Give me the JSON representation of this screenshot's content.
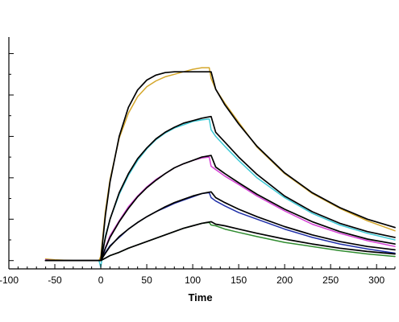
{
  "chart_data": {
    "type": "line",
    "title": "",
    "xlabel": "Time",
    "ylabel": "",
    "xlim": [
      -100,
      320
    ],
    "ylim": [
      -0.1,
      2.7
    ],
    "x_ticks": [
      -100,
      -50,
      0,
      50,
      100,
      150,
      200,
      250,
      300
    ],
    "x_tick_labels": [
      "-100",
      "-50",
      "0",
      "50",
      "100",
      "150",
      "200",
      "250",
      "300"
    ],
    "y_major_ticks": [
      0,
      0.5,
      1,
      1.5,
      2,
      2.5
    ],
    "y_minor_ticks": [
      -0.25,
      0.25,
      0.75,
      1.25,
      1.75,
      2.25,
      2.75
    ],
    "y_tick_labels": [],
    "grid": false,
    "legend": "none",
    "series": [
      {
        "role": "measured",
        "color": "#D4A62A",
        "x": [
          -60,
          -50,
          -30,
          -10,
          -2,
          0,
          5,
          10,
          20,
          30,
          40,
          50,
          60,
          70,
          80,
          90,
          100,
          110,
          118,
          120,
          125,
          135,
          150,
          170,
          200,
          230,
          260,
          290,
          320
        ],
        "y": [
          0.02,
          0.01,
          0.0,
          0.0,
          0.0,
          0.05,
          0.6,
          0.98,
          1.48,
          1.78,
          1.98,
          2.1,
          2.17,
          2.22,
          2.25,
          2.28,
          2.31,
          2.33,
          2.33,
          2.2,
          2.07,
          1.9,
          1.67,
          1.37,
          1.05,
          0.81,
          0.63,
          0.48,
          0.36
        ]
      },
      {
        "role": "measured",
        "color": "#3EC9D6",
        "x": [
          -60,
          -50,
          -30,
          -10,
          -2,
          0,
          5,
          10,
          20,
          30,
          40,
          50,
          60,
          70,
          80,
          90,
          100,
          110,
          118,
          120,
          125,
          135,
          150,
          170,
          200,
          230,
          260,
          290,
          320
        ],
        "y": [
          0.01,
          0.0,
          0.0,
          0.0,
          0.0,
          -0.08,
          0.3,
          0.5,
          0.8,
          1.03,
          1.21,
          1.35,
          1.46,
          1.54,
          1.6,
          1.64,
          1.68,
          1.7,
          1.71,
          1.58,
          1.5,
          1.38,
          1.21,
          1.0,
          0.76,
          0.57,
          0.43,
          0.33,
          0.25
        ]
      },
      {
        "role": "measured",
        "color": "#D43FD4",
        "x": [
          -60,
          -50,
          -30,
          -10,
          -2,
          0,
          5,
          10,
          20,
          30,
          40,
          50,
          60,
          70,
          80,
          90,
          100,
          110,
          118,
          120,
          125,
          135,
          150,
          170,
          200,
          230,
          260,
          290,
          320
        ],
        "y": [
          0.01,
          0.0,
          0.0,
          0.0,
          0.0,
          0.0,
          0.16,
          0.3,
          0.48,
          0.65,
          0.78,
          0.89,
          0.98,
          1.05,
          1.12,
          1.17,
          1.21,
          1.24,
          1.25,
          1.14,
          1.1,
          1.02,
          0.92,
          0.78,
          0.6,
          0.44,
          0.33,
          0.24,
          0.17
        ]
      },
      {
        "role": "measured",
        "color": "#1F2FA8",
        "x": [
          -60,
          -50,
          -30,
          -10,
          -2,
          0,
          5,
          10,
          20,
          30,
          40,
          50,
          60,
          70,
          80,
          90,
          100,
          110,
          118,
          120,
          125,
          135,
          150,
          170,
          200,
          230,
          260,
          290,
          320
        ],
        "y": [
          0.0,
          0.0,
          0.0,
          0.0,
          0.0,
          0.0,
          0.1,
          0.18,
          0.28,
          0.38,
          0.46,
          0.53,
          0.59,
          0.64,
          0.69,
          0.73,
          0.77,
          0.81,
          0.82,
          0.76,
          0.72,
          0.66,
          0.58,
          0.5,
          0.38,
          0.28,
          0.2,
          0.14,
          0.09
        ]
      },
      {
        "role": "measured",
        "color": "#2E8B2E",
        "x": [
          -60,
          -50,
          -30,
          -10,
          -2,
          0,
          5,
          10,
          20,
          30,
          40,
          50,
          60,
          70,
          80,
          90,
          100,
          110,
          118,
          120,
          125,
          135,
          150,
          170,
          200,
          230,
          260,
          290,
          320
        ],
        "y": [
          0.0,
          0.0,
          0.0,
          0.0,
          0.0,
          0.0,
          0.03,
          0.06,
          0.1,
          0.15,
          0.19,
          0.23,
          0.27,
          0.31,
          0.35,
          0.39,
          0.42,
          0.45,
          0.46,
          0.43,
          0.42,
          0.38,
          0.34,
          0.29,
          0.22,
          0.17,
          0.12,
          0.08,
          0.05
        ]
      },
      {
        "role": "fit",
        "color": "#000000",
        "x": [
          -60,
          -30,
          -5,
          0,
          5,
          10,
          20,
          30,
          40,
          50,
          60,
          70,
          80,
          90,
          100,
          110,
          120,
          125,
          135,
          150,
          170,
          200,
          230,
          260,
          290,
          320
        ],
        "y": [
          0.0,
          0.0,
          0.0,
          0.0,
          0.55,
          0.95,
          1.5,
          1.85,
          2.06,
          2.18,
          2.24,
          2.27,
          2.28,
          2.28,
          2.28,
          2.28,
          2.28,
          2.07,
          1.88,
          1.65,
          1.38,
          1.06,
          0.82,
          0.64,
          0.5,
          0.4
        ]
      },
      {
        "role": "fit",
        "color": "#000000",
        "x": [
          -60,
          -30,
          -5,
          0,
          5,
          10,
          20,
          30,
          40,
          50,
          60,
          70,
          80,
          90,
          100,
          110,
          120,
          125,
          135,
          150,
          170,
          200,
          230,
          260,
          290,
          320
        ],
        "y": [
          0.0,
          0.0,
          0.0,
          0.0,
          0.28,
          0.5,
          0.82,
          1.05,
          1.23,
          1.36,
          1.47,
          1.55,
          1.61,
          1.66,
          1.69,
          1.72,
          1.74,
          1.55,
          1.43,
          1.25,
          1.04,
          0.78,
          0.59,
          0.45,
          0.35,
          0.28
        ]
      },
      {
        "role": "fit",
        "color": "#000000",
        "x": [
          -60,
          -30,
          -5,
          0,
          5,
          10,
          20,
          30,
          40,
          50,
          60,
          70,
          80,
          90,
          100,
          110,
          120,
          125,
          135,
          150,
          170,
          200,
          230,
          260,
          290,
          320
        ],
        "y": [
          0.0,
          0.0,
          0.0,
          0.0,
          0.15,
          0.28,
          0.47,
          0.63,
          0.77,
          0.88,
          0.97,
          1.05,
          1.12,
          1.17,
          1.21,
          1.25,
          1.27,
          1.13,
          1.05,
          0.94,
          0.8,
          0.62,
          0.47,
          0.35,
          0.26,
          0.2
        ]
      },
      {
        "role": "fit",
        "color": "#000000",
        "x": [
          -60,
          -30,
          -5,
          0,
          5,
          10,
          20,
          30,
          40,
          50,
          60,
          70,
          80,
          90,
          100,
          110,
          120,
          125,
          135,
          150,
          170,
          200,
          230,
          260,
          290,
          320
        ],
        "y": [
          0.0,
          0.0,
          0.0,
          0.0,
          0.09,
          0.17,
          0.29,
          0.38,
          0.46,
          0.53,
          0.59,
          0.65,
          0.7,
          0.74,
          0.78,
          0.81,
          0.83,
          0.76,
          0.7,
          0.62,
          0.53,
          0.41,
          0.31,
          0.23,
          0.17,
          0.13
        ]
      },
      {
        "role": "fit",
        "color": "#000000",
        "x": [
          -60,
          -30,
          -5,
          0,
          5,
          10,
          20,
          30,
          40,
          50,
          60,
          70,
          80,
          90,
          100,
          110,
          120,
          125,
          135,
          150,
          170,
          200,
          230,
          260,
          290,
          320
        ],
        "y": [
          0.0,
          0.0,
          0.0,
          0.0,
          0.03,
          0.06,
          0.1,
          0.15,
          0.19,
          0.23,
          0.27,
          0.31,
          0.35,
          0.39,
          0.42,
          0.45,
          0.47,
          0.44,
          0.42,
          0.38,
          0.33,
          0.26,
          0.2,
          0.15,
          0.11,
          0.08
        ]
      }
    ]
  }
}
